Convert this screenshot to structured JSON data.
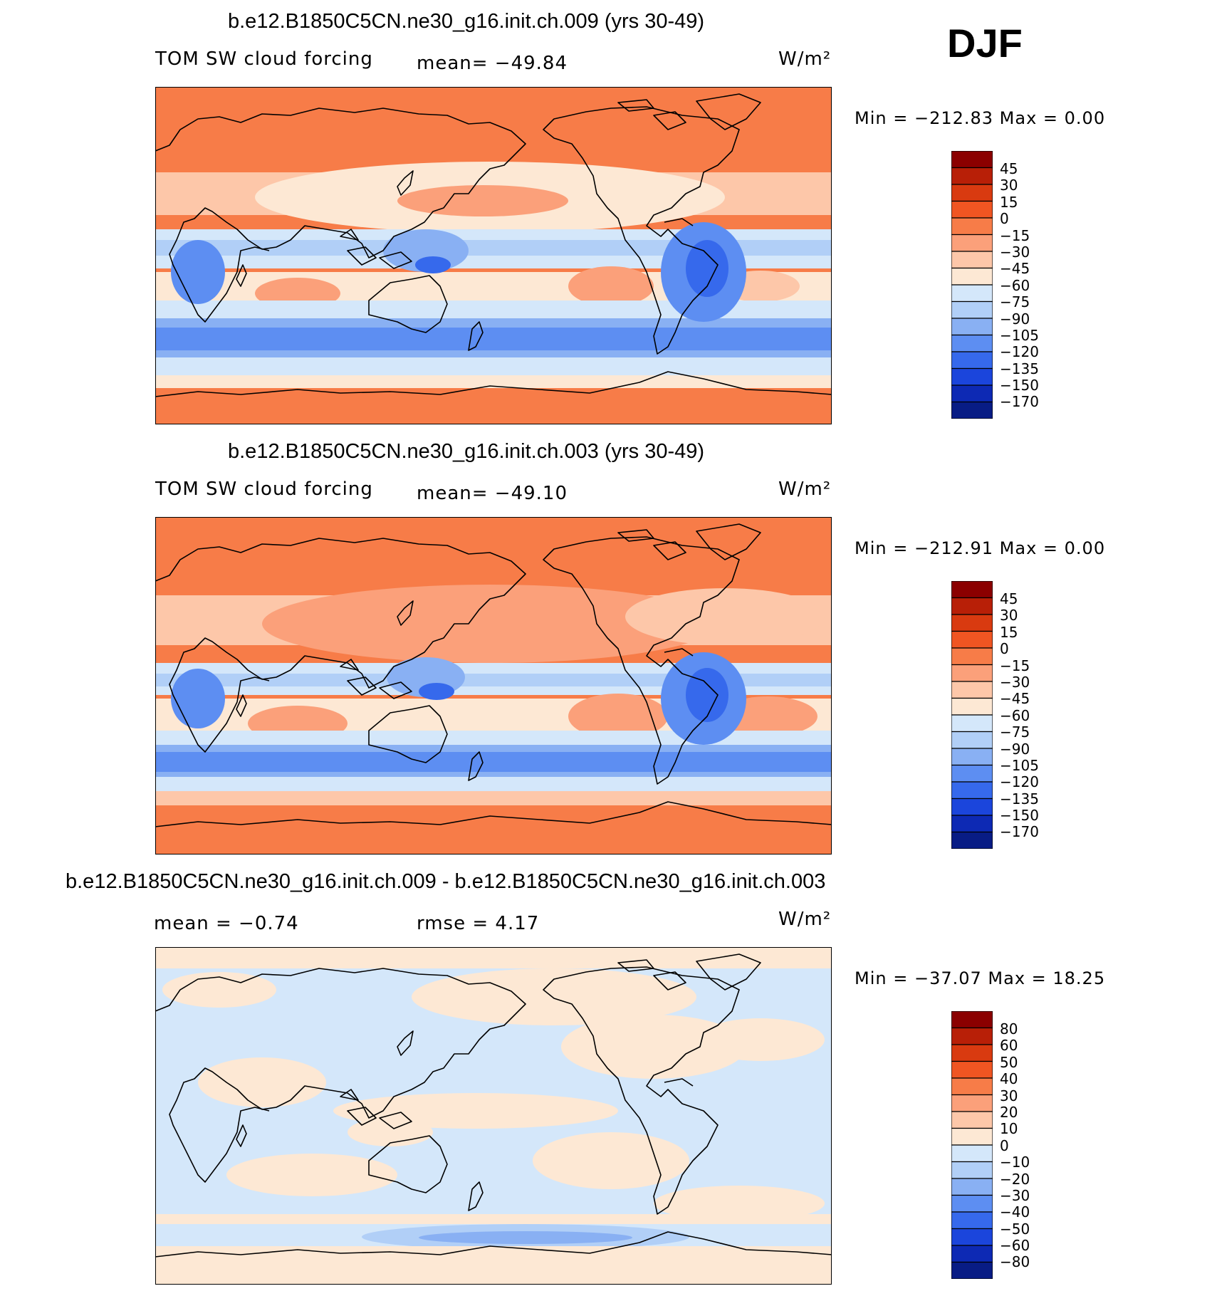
{
  "season": "DJF",
  "panels": [
    {
      "title": "b.e12.B1850C5CN.ne30_g16.init.ch.009 (yrs 30-49)",
      "left_text": "TOM SW cloud forcing",
      "center_text": "mean= −49.84",
      "units": "W/m²",
      "minmax": "Min = −212.83 Max =    0.00",
      "colorbar": {
        "levels": [
          "45",
          "30",
          "15",
          "0",
          "−15",
          "−30",
          "−45",
          "−60",
          "−75",
          "−90",
          "−105",
          "−120",
          "−135",
          "−150",
          "−170"
        ],
        "colors": [
          "#8b0000",
          "#b81f07",
          "#d93a10",
          "#f05522",
          "#f77c48",
          "#fba07a",
          "#fdc7a9",
          "#fde8d4",
          "#d4e7fa",
          "#b1cff7",
          "#89b0f3",
          "#5d8ef2",
          "#3669ec",
          "#1b45dc",
          "#0d29b4",
          "#081c85"
        ]
      }
    },
    {
      "title": "b.e12.B1850C5CN.ne30_g16.init.ch.003 (yrs 30-49)",
      "left_text": "TOM SW cloud forcing",
      "center_text": "mean= −49.10",
      "units": "W/m²",
      "minmax": "Min = −212.91 Max =    0.00",
      "colorbar": {
        "levels": [
          "45",
          "30",
          "15",
          "0",
          "−15",
          "−30",
          "−45",
          "−60",
          "−75",
          "−90",
          "−105",
          "−120",
          "−135",
          "−150",
          "−170"
        ],
        "colors": [
          "#8b0000",
          "#b81f07",
          "#d93a10",
          "#f05522",
          "#f77c48",
          "#fba07a",
          "#fdc7a9",
          "#fde8d4",
          "#d4e7fa",
          "#b1cff7",
          "#89b0f3",
          "#5d8ef2",
          "#3669ec",
          "#1b45dc",
          "#0d29b4",
          "#081c85"
        ]
      }
    },
    {
      "title": "b.e12.B1850C5CN.ne30_g16.init.ch.009 - b.e12.B1850C5CN.ne30_g16.init.ch.003",
      "left_text": "mean =   −0.74",
      "center_text": "rmse =    4.17",
      "units": "W/m²",
      "minmax": "Min = −37.07 Max =  18.25",
      "colorbar": {
        "levels": [
          "80",
          "60",
          "50",
          "40",
          "30",
          "20",
          "10",
          "0",
          "−10",
          "−20",
          "−30",
          "−40",
          "−50",
          "−60",
          "−80"
        ],
        "colors": [
          "#8b0000",
          "#b81f07",
          "#d93a10",
          "#f05522",
          "#f77c48",
          "#fba07a",
          "#fdc7a9",
          "#fde8d4",
          "#d4e7fa",
          "#b1cff7",
          "#89b0f3",
          "#5d8ef2",
          "#3669ec",
          "#1b45dc",
          "#0d29b4",
          "#081c85"
        ]
      }
    }
  ]
}
